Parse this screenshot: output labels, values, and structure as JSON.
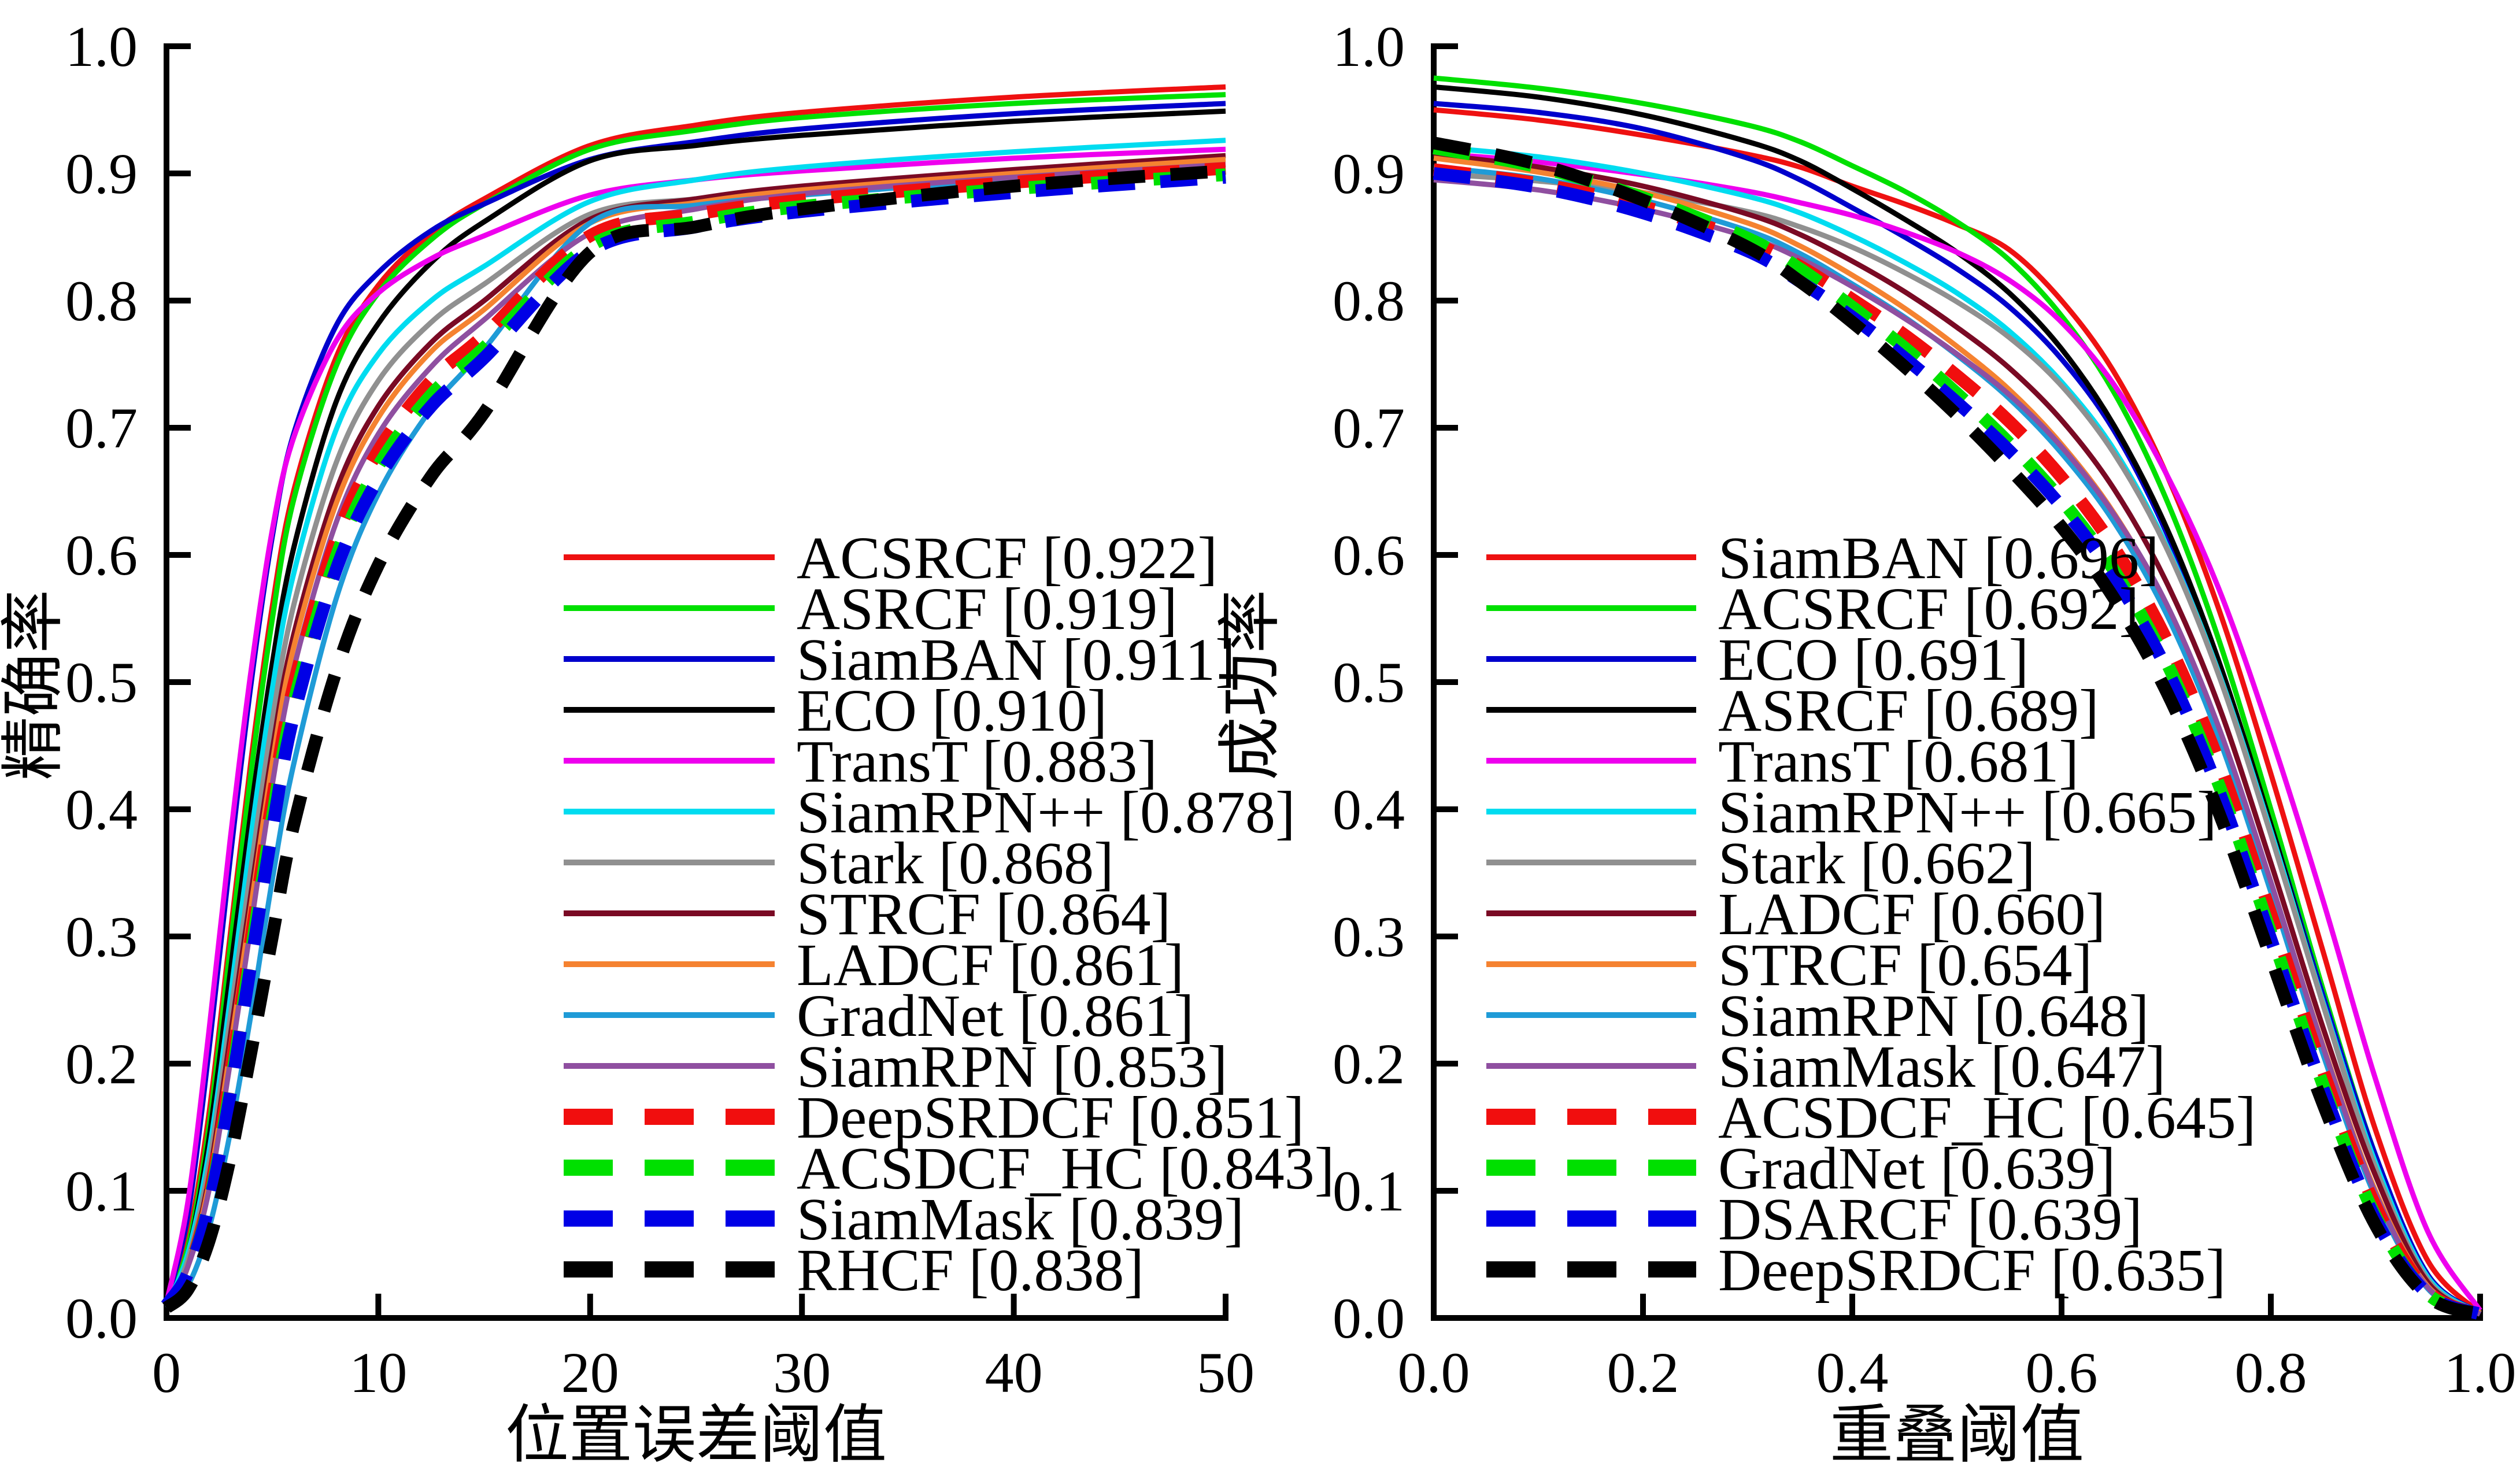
{
  "figure": {
    "background": "#ffffff",
    "axis_color": "#000000",
    "description": "Two tracking-benchmark evaluation plots: precision plot (left) and success plot (right)"
  },
  "chart_data": [
    {
      "type": "line",
      "title": "",
      "xlabel": "位置误差阈值",
      "ylabel": "精确率",
      "xlim": [
        0,
        50
      ],
      "ylim": [
        0.0,
        1.0
      ],
      "grid": false,
      "legend_position": "inside lower-right, no frame",
      "xtick_values": [
        0,
        10,
        20,
        30,
        40,
        50
      ],
      "xtick_labels": [
        "0",
        "10",
        "20",
        "30",
        "40",
        "50"
      ],
      "ytick_values": [
        0.0,
        0.1,
        0.2,
        0.3,
        0.4,
        0.5,
        0.6,
        0.7,
        0.8,
        0.9,
        1.0
      ],
      "ytick_labels": [
        "0.0",
        "0.1",
        "0.2",
        "0.3",
        "0.4",
        "0.5",
        "0.6",
        "0.7",
        "0.8",
        "0.9",
        "1.0"
      ],
      "x": [
        0,
        1,
        2,
        3,
        4,
        5,
        6,
        8,
        10,
        12.5,
        15,
        20,
        25,
        30,
        40,
        50
      ],
      "series": [
        {
          "name": "ACSRCF",
          "score": "0.922",
          "label": "ACSRCF [0.922]",
          "color": "#ee1111",
          "dashed": false,
          "values": [
            0.01,
            0.06,
            0.16,
            0.3,
            0.44,
            0.56,
            0.65,
            0.755,
            0.812,
            0.853,
            0.88,
            0.922,
            0.938,
            0.948,
            0.96,
            0.968
          ]
        },
        {
          "name": "ASRCF",
          "score": "0.919",
          "label": "ASRCF [0.919]",
          "color": "#00e000",
          "dashed": false,
          "values": [
            0.01,
            0.055,
            0.15,
            0.29,
            0.43,
            0.55,
            0.643,
            0.748,
            0.806,
            0.848,
            0.876,
            0.919,
            0.934,
            0.944,
            0.955,
            0.962
          ]
        },
        {
          "name": "SiamBAN",
          "score": "0.911",
          "label": "SiamBAN [0.911]",
          "color": "#0000cc",
          "dashed": false,
          "values": [
            0.012,
            0.08,
            0.21,
            0.36,
            0.5,
            0.615,
            0.695,
            0.78,
            0.822,
            0.855,
            0.876,
            0.911,
            0.925,
            0.935,
            0.947,
            0.955
          ]
        },
        {
          "name": "ECO",
          "score": "0.910",
          "label": "ECO [0.910]",
          "color": "#000000",
          "dashed": false,
          "values": [
            0.01,
            0.05,
            0.14,
            0.27,
            0.4,
            0.515,
            0.605,
            0.72,
            0.782,
            0.83,
            0.862,
            0.91,
            0.922,
            0.93,
            0.941,
            0.949
          ]
        },
        {
          "name": "TransT",
          "score": "0.883",
          "label": "TransT [0.883]",
          "color": "#ee00ee",
          "dashed": false,
          "values": [
            0.012,
            0.09,
            0.225,
            0.375,
            0.51,
            0.62,
            0.692,
            0.768,
            0.806,
            0.833,
            0.851,
            0.883,
            0.895,
            0.902,
            0.912,
            0.919
          ]
        },
        {
          "name": "SiamRPN++",
          "score": "0.878",
          "label": "SiamRPN++ [0.878]",
          "color": "#00dcf0",
          "dashed": false,
          "values": [
            0.01,
            0.05,
            0.13,
            0.25,
            0.38,
            0.495,
            0.585,
            0.698,
            0.758,
            0.8,
            0.827,
            0.878,
            0.895,
            0.905,
            0.917,
            0.926
          ]
        },
        {
          "name": "Stark",
          "score": "0.868",
          "label": "Stark [0.868]",
          "color": "#909090",
          "dashed": false,
          "values": [
            0.01,
            0.045,
            0.12,
            0.235,
            0.355,
            0.47,
            0.56,
            0.672,
            0.737,
            0.783,
            0.813,
            0.868,
            0.88,
            0.888,
            0.898,
            0.907
          ]
        },
        {
          "name": "STRCF",
          "score": "0.864",
          "label": "STRCF [0.864]",
          "color": "#7a0a24",
          "dashed": false,
          "values": [
            0.01,
            0.04,
            0.11,
            0.22,
            0.335,
            0.447,
            0.537,
            0.65,
            0.717,
            0.767,
            0.8,
            0.864,
            0.88,
            0.89,
            0.903,
            0.914
          ]
        },
        {
          "name": "LADCF",
          "score": "0.861",
          "label": "LADCF [0.861]",
          "color": "#f58230",
          "dashed": false,
          "values": [
            0.01,
            0.04,
            0.105,
            0.21,
            0.325,
            0.437,
            0.527,
            0.64,
            0.708,
            0.76,
            0.793,
            0.861,
            0.877,
            0.887,
            0.9,
            0.911
          ]
        },
        {
          "name": "GradNet",
          "score": "0.861",
          "label": "GradNet [0.861]",
          "color": "#1f9bd7",
          "dashed": false,
          "values": [
            0.008,
            0.025,
            0.07,
            0.145,
            0.24,
            0.345,
            0.435,
            0.565,
            0.648,
            0.715,
            0.762,
            0.861,
            0.875,
            0.883,
            0.895,
            0.904
          ]
        },
        {
          "name": "SiamRPN",
          "score": "0.853",
          "label": "SiamRPN [0.853]",
          "color": "#8f4fa0",
          "dashed": false,
          "values": [
            0.01,
            0.04,
            0.1,
            0.2,
            0.31,
            0.42,
            0.51,
            0.625,
            0.695,
            0.748,
            0.785,
            0.853,
            0.872,
            0.884,
            0.897,
            0.907
          ]
        },
        {
          "name": "DeepSRDCF",
          "score": "0.851",
          "label": "DeepSRDCF [0.851]",
          "color": "#f10e0e",
          "dashed": true,
          "values": [
            0.01,
            0.035,
            0.095,
            0.19,
            0.3,
            0.408,
            0.497,
            0.612,
            0.682,
            0.737,
            0.773,
            0.851,
            0.868,
            0.879,
            0.893,
            0.904
          ]
        },
        {
          "name": "ACSDCF_HC",
          "score": "0.843",
          "label": "ACSDCF_HC [0.843]",
          "color": "#00e000",
          "dashed": true,
          "values": [
            0.01,
            0.035,
            0.09,
            0.18,
            0.288,
            0.394,
            0.483,
            0.598,
            0.67,
            0.726,
            0.763,
            0.843,
            0.862,
            0.874,
            0.888,
            0.899
          ]
        },
        {
          "name": "SiamMask",
          "score": "0.839",
          "label": "SiamMask [0.839]",
          "color": "#0000e6",
          "dashed": true,
          "values": [
            0.01,
            0.035,
            0.088,
            0.175,
            0.28,
            0.384,
            0.473,
            0.588,
            0.66,
            0.717,
            0.755,
            0.839,
            0.858,
            0.87,
            0.885,
            0.897
          ]
        },
        {
          "name": "RHCF",
          "score": "0.838",
          "label": "RHCF [0.838]",
          "color": "#000000",
          "dashed": true,
          "values": [
            0.008,
            0.022,
            0.06,
            0.125,
            0.21,
            0.3,
            0.387,
            0.508,
            0.592,
            0.662,
            0.712,
            0.838,
            0.858,
            0.872,
            0.89,
            0.902
          ]
        }
      ]
    },
    {
      "type": "line",
      "title": "",
      "xlabel": "重叠阈值",
      "ylabel": "成功率",
      "xlim": [
        0.0,
        1.0
      ],
      "ylim": [
        0.0,
        1.0
      ],
      "grid": false,
      "legend_position": "inside lower-left, no frame",
      "xtick_values": [
        0.0,
        0.2,
        0.4,
        0.6,
        0.8,
        1.0
      ],
      "xtick_labels": [
        "0.0",
        "0.2",
        "0.4",
        "0.6",
        "0.8",
        "1.0"
      ],
      "ytick_values": [
        0.0,
        0.1,
        0.2,
        0.3,
        0.4,
        0.5,
        0.6,
        0.7,
        0.8,
        0.9,
        1.0
      ],
      "ytick_labels": [
        "0.0",
        "0.1",
        "0.2",
        "0.3",
        "0.4",
        "0.5",
        "0.6",
        "0.7",
        "0.8",
        "0.9",
        "1.0"
      ],
      "x": [
        0,
        0.1,
        0.2,
        0.3,
        0.35,
        0.4,
        0.45,
        0.5,
        0.55,
        0.6,
        0.65,
        0.7,
        0.75,
        0.8,
        0.85,
        0.9,
        0.95,
        1.0
      ],
      "series": [
        {
          "name": "SiamBAN",
          "score": "0.696",
          "label": "SiamBAN [0.696]",
          "color": "#ee1111",
          "dashed": false,
          "values": [
            0.95,
            0.942,
            0.93,
            0.915,
            0.905,
            0.89,
            0.876,
            0.86,
            0.84,
            0.8,
            0.744,
            0.664,
            0.558,
            0.428,
            0.288,
            0.148,
            0.045,
            0.004
          ]
        },
        {
          "name": "ACSRCF",
          "score": "0.692",
          "label": "ACSRCF [0.692]",
          "color": "#00e000",
          "dashed": false,
          "values": [
            0.975,
            0.967,
            0.955,
            0.938,
            0.925,
            0.906,
            0.886,
            0.862,
            0.832,
            0.788,
            0.728,
            0.644,
            0.534,
            0.4,
            0.258,
            0.128,
            0.034,
            0.004
          ]
        },
        {
          "name": "ECO",
          "score": "0.691",
          "label": "ECO [0.691]",
          "color": "#0000cc",
          "dashed": false,
          "values": [
            0.955,
            0.948,
            0.935,
            0.912,
            0.895,
            0.873,
            0.85,
            0.825,
            0.795,
            0.754,
            0.698,
            0.618,
            0.513,
            0.388,
            0.253,
            0.128,
            0.034,
            0.004
          ]
        },
        {
          "name": "ASRCF",
          "score": "0.689",
          "label": "ASRCF [0.689]",
          "color": "#000000",
          "dashed": false,
          "values": [
            0.968,
            0.96,
            0.946,
            0.925,
            0.91,
            0.888,
            0.864,
            0.838,
            0.806,
            0.762,
            0.702,
            0.622,
            0.517,
            0.388,
            0.248,
            0.122,
            0.03,
            0.004
          ]
        },
        {
          "name": "TransT",
          "score": "0.681",
          "label": "TransT [0.681]",
          "color": "#ee00ee",
          "dashed": false,
          "values": [
            0.916,
            0.909,
            0.899,
            0.886,
            0.877,
            0.867,
            0.854,
            0.838,
            0.816,
            0.783,
            0.734,
            0.664,
            0.574,
            0.458,
            0.328,
            0.188,
            0.068,
            0.006
          ]
        },
        {
          "name": "SiamRPN++",
          "score": "0.665",
          "label": "SiamRPN++ [0.665]",
          "color": "#00dcf0",
          "dashed": false,
          "values": [
            0.921,
            0.913,
            0.9,
            0.882,
            0.869,
            0.851,
            0.83,
            0.806,
            0.776,
            0.736,
            0.683,
            0.608,
            0.508,
            0.383,
            0.248,
            0.122,
            0.032,
            0.004
          ]
        },
        {
          "name": "Stark",
          "score": "0.662",
          "label": "Stark [0.662]",
          "color": "#909090",
          "dashed": false,
          "values": [
            0.9,
            0.894,
            0.885,
            0.87,
            0.858,
            0.842,
            0.822,
            0.799,
            0.771,
            0.733,
            0.68,
            0.606,
            0.506,
            0.38,
            0.246,
            0.118,
            0.03,
            0.004
          ]
        },
        {
          "name": "LADCF",
          "score": "0.660",
          "label": "LADCF [0.660]",
          "color": "#7a0a24",
          "dashed": false,
          "values": [
            0.915,
            0.905,
            0.89,
            0.868,
            0.852,
            0.831,
            0.807,
            0.779,
            0.747,
            0.706,
            0.652,
            0.579,
            0.482,
            0.358,
            0.228,
            0.112,
            0.028,
            0.004
          ]
        },
        {
          "name": "STRCF",
          "score": "0.654",
          "label": "STRCF [0.654]",
          "color": "#f58230",
          "dashed": false,
          "values": [
            0.912,
            0.901,
            0.885,
            0.861,
            0.843,
            0.82,
            0.794,
            0.764,
            0.73,
            0.687,
            0.633,
            0.561,
            0.464,
            0.342,
            0.214,
            0.1,
            0.025,
            0.004
          ]
        },
        {
          "name": "SiamRPN",
          "score": "0.648",
          "label": "SiamRPN [0.648]",
          "color": "#1f9bd7",
          "dashed": false,
          "values": [
            0.905,
            0.896,
            0.879,
            0.855,
            0.837,
            0.813,
            0.787,
            0.757,
            0.723,
            0.68,
            0.626,
            0.554,
            0.457,
            0.335,
            0.207,
            0.095,
            0.023,
            0.003
          ]
        },
        {
          "name": "SiamMask",
          "score": "0.647",
          "label": "SiamMask [0.647]",
          "color": "#8f4fa0",
          "dashed": false,
          "values": [
            0.895,
            0.887,
            0.872,
            0.85,
            0.833,
            0.811,
            0.786,
            0.758,
            0.726,
            0.685,
            0.632,
            0.562,
            0.465,
            0.343,
            0.213,
            0.098,
            0.024,
            0.003
          ]
        },
        {
          "name": "ACSDCF_HC",
          "score": "0.645",
          "label": "ACSDCF_HC [0.645]",
          "color": "#f10e0e",
          "dashed": true,
          "values": [
            0.903,
            0.892,
            0.874,
            0.847,
            0.827,
            0.801,
            0.773,
            0.741,
            0.705,
            0.661,
            0.606,
            0.534,
            0.438,
            0.318,
            0.194,
            0.088,
            0.021,
            0.003
          ]
        },
        {
          "name": "GradNet",
          "score": "0.639",
          "label": "GradNet [0.639]",
          "color": "#00e000",
          "dashed": true,
          "values": [
            0.92,
            0.905,
            0.881,
            0.849,
            0.825,
            0.795,
            0.763,
            0.727,
            0.688,
            0.643,
            0.588,
            0.516,
            0.42,
            0.303,
            0.183,
            0.08,
            0.019,
            0.003
          ]
        },
        {
          "name": "DSARCF",
          "score": "0.639",
          "label": "DSARCF [0.639]",
          "color": "#0000e6",
          "dashed": true,
          "values": [
            0.9,
            0.889,
            0.869,
            0.839,
            0.815,
            0.787,
            0.755,
            0.72,
            0.682,
            0.638,
            0.583,
            0.511,
            0.415,
            0.298,
            0.18,
            0.078,
            0.019,
            0.003
          ]
        },
        {
          "name": "DeepSRDCF",
          "score": "0.635",
          "label": "DeepSRDCF [0.635]",
          "color": "#000000",
          "dashed": true,
          "values": [
            0.924,
            0.907,
            0.879,
            0.842,
            0.815,
            0.783,
            0.748,
            0.71,
            0.668,
            0.622,
            0.566,
            0.493,
            0.398,
            0.283,
            0.168,
            0.073,
            0.017,
            0.003
          ]
        }
      ]
    }
  ]
}
